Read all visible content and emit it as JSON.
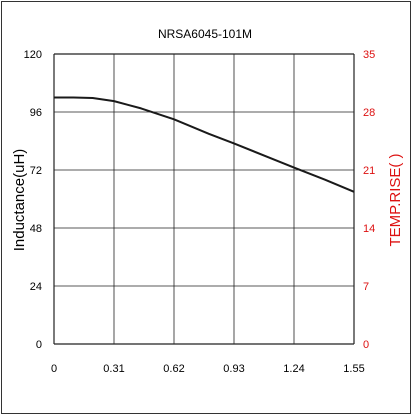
{
  "chart_data": {
    "type": "line",
    "title": "NRSA6045-101M",
    "ylabel": "Inductance(uH)",
    "y2label": "TEMP.RISE(   )",
    "x_ticks": [
      "0",
      "0.31",
      "0.62",
      "0.93",
      "1.24",
      "1.55"
    ],
    "y_ticks": [
      "0",
      "24",
      "48",
      "72",
      "96",
      "120"
    ],
    "y2_ticks": [
      "0",
      "7",
      "14",
      "21",
      "28",
      "35"
    ],
    "xlim": [
      0,
      1.55
    ],
    "ylim": [
      0,
      120
    ],
    "y2lim": [
      0,
      35
    ],
    "grid": true,
    "series": [
      {
        "color": "#1a1a1a",
        "x": [
          0,
          0.1,
          0.2,
          0.31,
          0.45,
          0.62,
          0.8,
          0.93,
          1.1,
          1.24,
          1.4,
          1.55
        ],
        "y": [
          102,
          102,
          101.8,
          100.5,
          97.5,
          93,
          87,
          83,
          77.5,
          73,
          68,
          63
        ]
      }
    ],
    "colors": {
      "left_axis": "#000000",
      "right_axis": "#dd1111",
      "grid": "#222222"
    }
  }
}
